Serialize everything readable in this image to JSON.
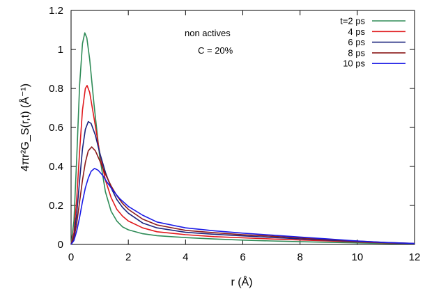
{
  "chart_data": {
    "type": "line",
    "title": "",
    "xlabel": "r (Å)",
    "ylabel": "4πr²G_S(r,t)  (Å⁻¹)",
    "xlim": [
      0,
      12
    ],
    "ylim": [
      0,
      1.2
    ],
    "x_ticks": [
      0,
      2,
      4,
      6,
      8,
      10,
      12
    ],
    "y_ticks": [
      0,
      0.2,
      0.4,
      0.6,
      0.8,
      1,
      1.2
    ],
    "x_tick_labels": [
      "0",
      "2",
      "4",
      "6",
      "8",
      "10",
      "12"
    ],
    "y_tick_labels": [
      "0",
      "0.2",
      "0.4",
      "0.6",
      "0.8",
      "1",
      "1.2"
    ],
    "grid": false,
    "legend_position": "top-right",
    "annotations": [
      "non actives",
      "C = 20%"
    ],
    "series": [
      {
        "name": "t=2 ps",
        "color": "#2e8b57",
        "points": [
          [
            0,
            0
          ],
          [
            0.1,
            0.12
          ],
          [
            0.2,
            0.45
          ],
          [
            0.3,
            0.82
          ],
          [
            0.4,
            1.03
          ],
          [
            0.48,
            1.085
          ],
          [
            0.55,
            1.06
          ],
          [
            0.65,
            0.95
          ],
          [
            0.8,
            0.72
          ],
          [
            1.0,
            0.45
          ],
          [
            1.2,
            0.27
          ],
          [
            1.4,
            0.17
          ],
          [
            1.6,
            0.12
          ],
          [
            1.8,
            0.09
          ],
          [
            2.0,
            0.075
          ],
          [
            2.5,
            0.055
          ],
          [
            3,
            0.045
          ],
          [
            4,
            0.035
          ],
          [
            5,
            0.028
          ],
          [
            6,
            0.022
          ],
          [
            7,
            0.018
          ],
          [
            8,
            0.014
          ],
          [
            9,
            0.011
          ],
          [
            10,
            0.008
          ],
          [
            11,
            0.005
          ],
          [
            12,
            0.003
          ]
        ]
      },
      {
        "name": "4 ps",
        "color": "#e0191d",
        "points": [
          [
            0,
            0
          ],
          [
            0.1,
            0.06
          ],
          [
            0.2,
            0.24
          ],
          [
            0.3,
            0.48
          ],
          [
            0.4,
            0.69
          ],
          [
            0.5,
            0.8
          ],
          [
            0.56,
            0.815
          ],
          [
            0.65,
            0.78
          ],
          [
            0.8,
            0.65
          ],
          [
            1.0,
            0.47
          ],
          [
            1.2,
            0.33
          ],
          [
            1.4,
            0.24
          ],
          [
            1.6,
            0.18
          ],
          [
            1.8,
            0.145
          ],
          [
            2.0,
            0.12
          ],
          [
            2.5,
            0.085
          ],
          [
            3,
            0.065
          ],
          [
            4,
            0.05
          ],
          [
            5,
            0.04
          ],
          [
            6,
            0.034
          ],
          [
            7,
            0.028
          ],
          [
            8,
            0.023
          ],
          [
            9,
            0.018
          ],
          [
            10,
            0.013
          ],
          [
            11,
            0.008
          ],
          [
            12,
            0.004
          ]
        ]
      },
      {
        "name": "6 ps",
        "color": "#1a237e",
        "points": [
          [
            0,
            0
          ],
          [
            0.1,
            0.04
          ],
          [
            0.2,
            0.16
          ],
          [
            0.3,
            0.33
          ],
          [
            0.4,
            0.49
          ],
          [
            0.5,
            0.59
          ],
          [
            0.6,
            0.63
          ],
          [
            0.7,
            0.62
          ],
          [
            0.85,
            0.56
          ],
          [
            1.0,
            0.47
          ],
          [
            1.2,
            0.37
          ],
          [
            1.4,
            0.29
          ],
          [
            1.6,
            0.23
          ],
          [
            1.8,
            0.19
          ],
          [
            2.0,
            0.16
          ],
          [
            2.5,
            0.11
          ],
          [
            3,
            0.085
          ],
          [
            4,
            0.062
          ],
          [
            5,
            0.052
          ],
          [
            6,
            0.044
          ],
          [
            7,
            0.036
          ],
          [
            8,
            0.029
          ],
          [
            9,
            0.022
          ],
          [
            10,
            0.015
          ],
          [
            11,
            0.009
          ],
          [
            12,
            0.004
          ]
        ]
      },
      {
        "name": "8 ps",
        "color": "#8b1a1a",
        "points": [
          [
            0,
            0
          ],
          [
            0.1,
            0.03
          ],
          [
            0.2,
            0.11
          ],
          [
            0.3,
            0.22
          ],
          [
            0.4,
            0.33
          ],
          [
            0.5,
            0.42
          ],
          [
            0.6,
            0.48
          ],
          [
            0.72,
            0.5
          ],
          [
            0.85,
            0.48
          ],
          [
            1.0,
            0.43
          ],
          [
            1.2,
            0.36
          ],
          [
            1.4,
            0.3
          ],
          [
            1.6,
            0.25
          ],
          [
            1.8,
            0.21
          ],
          [
            2.0,
            0.18
          ],
          [
            2.5,
            0.13
          ],
          [
            3,
            0.1
          ],
          [
            4,
            0.072
          ],
          [
            5,
            0.06
          ],
          [
            6,
            0.05
          ],
          [
            7,
            0.042
          ],
          [
            8,
            0.034
          ],
          [
            9,
            0.025
          ],
          [
            10,
            0.017
          ],
          [
            11,
            0.01
          ],
          [
            12,
            0.005
          ]
        ]
      },
      {
        "name": "10 ps",
        "color": "#1a1ae6",
        "points": [
          [
            0,
            0
          ],
          [
            0.1,
            0.02
          ],
          [
            0.2,
            0.07
          ],
          [
            0.3,
            0.14
          ],
          [
            0.4,
            0.22
          ],
          [
            0.5,
            0.29
          ],
          [
            0.6,
            0.34
          ],
          [
            0.7,
            0.375
          ],
          [
            0.82,
            0.39
          ],
          [
            0.95,
            0.38
          ],
          [
            1.1,
            0.355
          ],
          [
            1.3,
            0.31
          ],
          [
            1.5,
            0.27
          ],
          [
            1.7,
            0.235
          ],
          [
            2.0,
            0.195
          ],
          [
            2.5,
            0.15
          ],
          [
            3,
            0.115
          ],
          [
            4,
            0.085
          ],
          [
            5,
            0.07
          ],
          [
            6,
            0.058
          ],
          [
            7,
            0.048
          ],
          [
            8,
            0.038
          ],
          [
            9,
            0.028
          ],
          [
            10,
            0.018
          ],
          [
            11,
            0.01
          ],
          [
            12,
            0.005
          ]
        ]
      }
    ]
  }
}
